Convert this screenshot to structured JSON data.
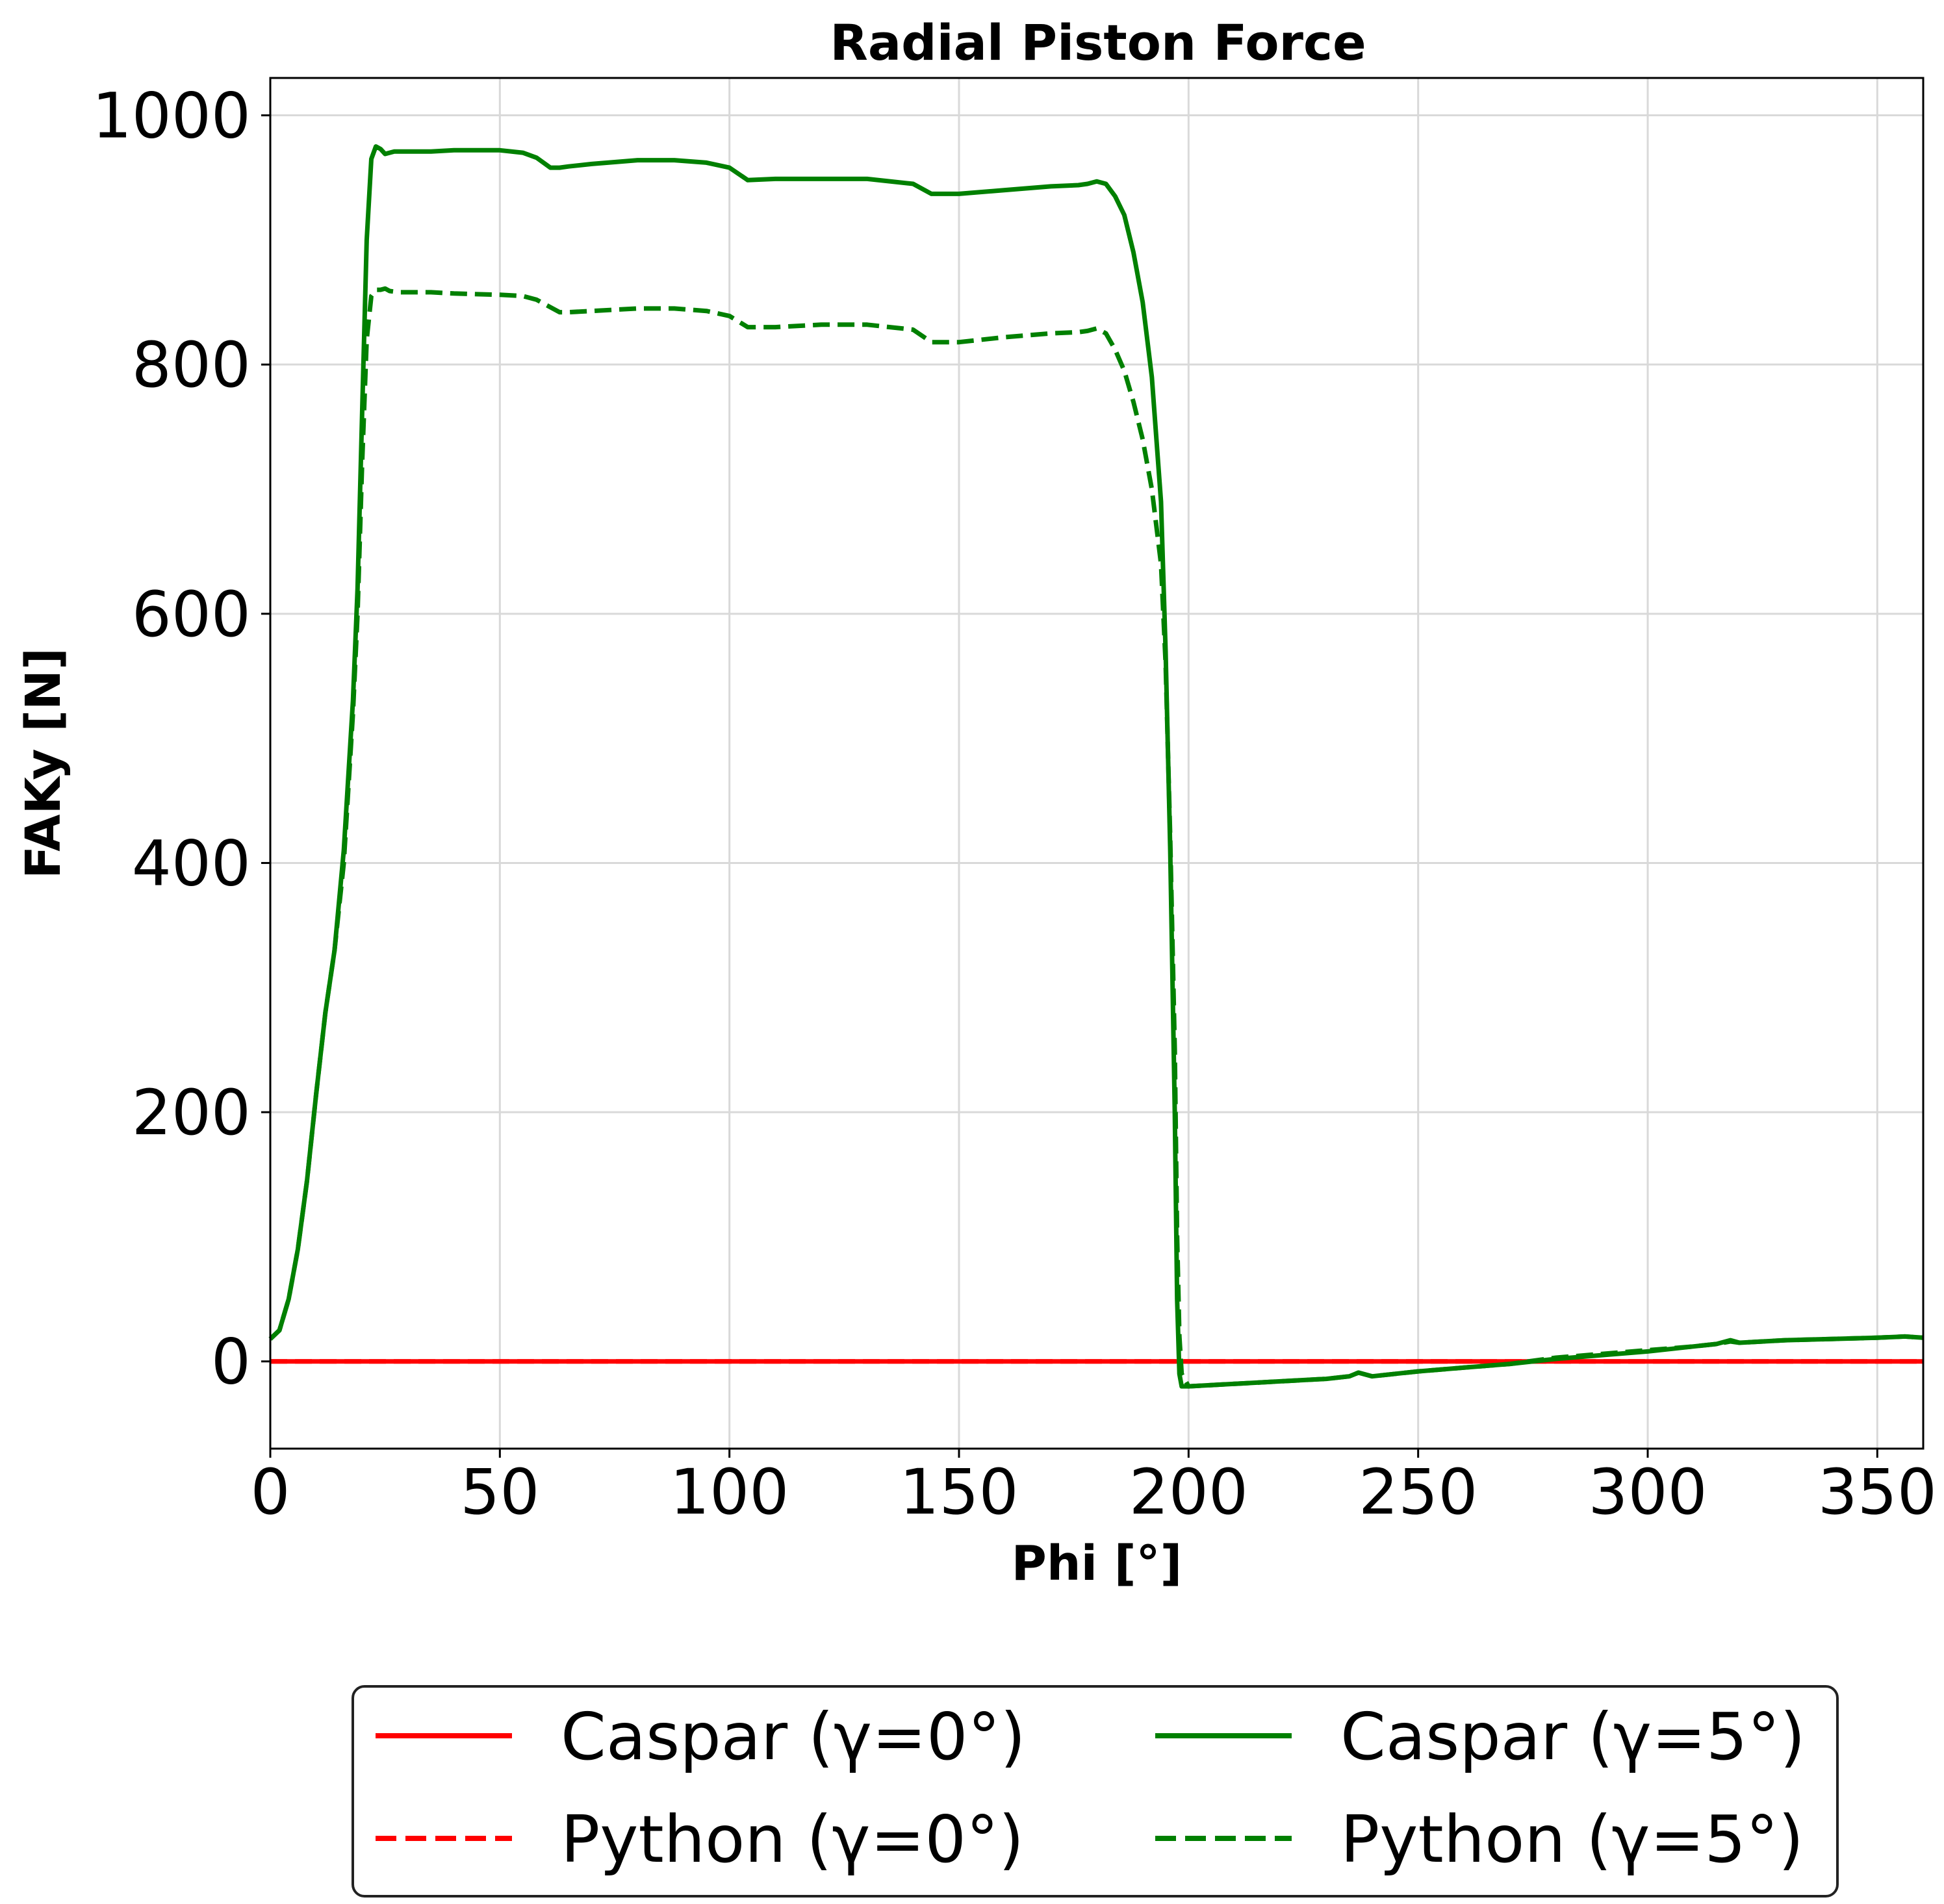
{
  "chart_data": {
    "type": "line",
    "title": "Radial Piston Force",
    "xlabel": "Phi [°]",
    "ylabel": "FAKy [N]",
    "xlim": [
      0,
      360
    ],
    "ylim": [
      -70,
      1030
    ],
    "xticks": [
      0,
      50,
      100,
      150,
      200,
      250,
      300,
      350
    ],
    "yticks": [
      0,
      200,
      400,
      600,
      800,
      1000
    ],
    "xtick_labels": [
      "0",
      "50",
      "100",
      "150",
      "200",
      "250",
      "300",
      "350"
    ],
    "ytick_labels": [
      "0",
      "200",
      "400",
      "600",
      "800",
      "1000"
    ],
    "grid": true,
    "legend_position": "bottom-center, outside",
    "series": [
      {
        "name": "Caspar (γ=0°)",
        "color": "#ff0000",
        "dash": "solid",
        "x": [
          0,
          360
        ],
        "y": [
          0,
          0
        ]
      },
      {
        "name": "Python (γ=0°)",
        "color": "#ff0000",
        "dash": "dashed",
        "x": [
          0,
          360
        ],
        "y": [
          0,
          0
        ]
      },
      {
        "name": "Caspar (γ=5°)",
        "color": "#008000",
        "dash": "solid",
        "x": [
          0,
          2,
          4,
          6,
          8,
          10,
          12,
          14,
          16,
          18,
          19,
          20,
          21,
          22,
          23,
          24,
          25,
          26,
          27,
          28,
          30,
          35,
          40,
          50,
          55,
          58,
          61,
          63,
          65,
          70,
          80,
          88,
          95,
          100,
          104,
          110,
          120,
          130,
          140,
          144,
          150,
          160,
          170,
          176,
          178,
          180,
          182,
          184,
          186,
          188,
          190,
          192,
          194,
          195,
          196,
          197,
          197.5,
          198,
          198.5,
          200,
          210,
          220,
          230,
          235,
          237,
          240,
          250,
          260,
          270,
          280,
          290,
          300,
          310,
          315,
          318,
          320,
          330,
          340,
          350,
          356,
          360
        ],
        "y": [
          18,
          25,
          50,
          90,
          145,
          215,
          280,
          330,
          410,
          530,
          620,
          760,
          900,
          965,
          975,
          973,
          969,
          970,
          971,
          971,
          971,
          971,
          972,
          972,
          970,
          966,
          958,
          958,
          959,
          961,
          964,
          964,
          962,
          958,
          948,
          949,
          949,
          949,
          945,
          937,
          937,
          940,
          943,
          944,
          945,
          947,
          945,
          935,
          920,
          890,
          850,
          790,
          690,
          570,
          410,
          200,
          50,
          -10,
          -20,
          -20,
          -18,
          -16,
          -14,
          -12,
          -9,
          -12,
          -8,
          -5,
          -2,
          2,
          5,
          8,
          12,
          14,
          17,
          15,
          17,
          18,
          19,
          20,
          19
        ]
      },
      {
        "name": "Python (γ=5°)",
        "color": "#008000",
        "dash": "dashed",
        "x": [
          0,
          2,
          4,
          6,
          8,
          10,
          12,
          14,
          16,
          18,
          19,
          20,
          21,
          22,
          23,
          24,
          25,
          26,
          28,
          30,
          35,
          40,
          50,
          55,
          58,
          61,
          63,
          65,
          70,
          80,
          88,
          95,
          100,
          104,
          110,
          120,
          130,
          140,
          144,
          150,
          160,
          170,
          176,
          178,
          180,
          182,
          184,
          186,
          188,
          190,
          192,
          194,
          195,
          196,
          197,
          197.5,
          198,
          198.5,
          200,
          210,
          220,
          230,
          235,
          237,
          240,
          250,
          260,
          270,
          280,
          290,
          300,
          310,
          315,
          318,
          320,
          330,
          340,
          350,
          356,
          360
        ],
        "y": [
          18,
          25,
          50,
          90,
          145,
          215,
          280,
          330,
          400,
          520,
          600,
          720,
          820,
          855,
          860,
          860,
          861,
          859,
          858,
          858,
          858,
          857,
          856,
          855,
          852,
          846,
          842,
          842,
          843,
          845,
          845,
          843,
          839,
          830,
          830,
          832,
          832,
          828,
          818,
          818,
          822,
          825,
          826,
          827,
          829,
          825,
          812,
          795,
          770,
          740,
          700,
          640,
          560,
          420,
          250,
          100,
          20,
          -10,
          -20,
          -18,
          -16,
          -14,
          -12,
          -9,
          -12,
          -8,
          -5,
          -2,
          3,
          6,
          9,
          12,
          14,
          16,
          15,
          17,
          18,
          19,
          20,
          19
        ]
      }
    ]
  }
}
